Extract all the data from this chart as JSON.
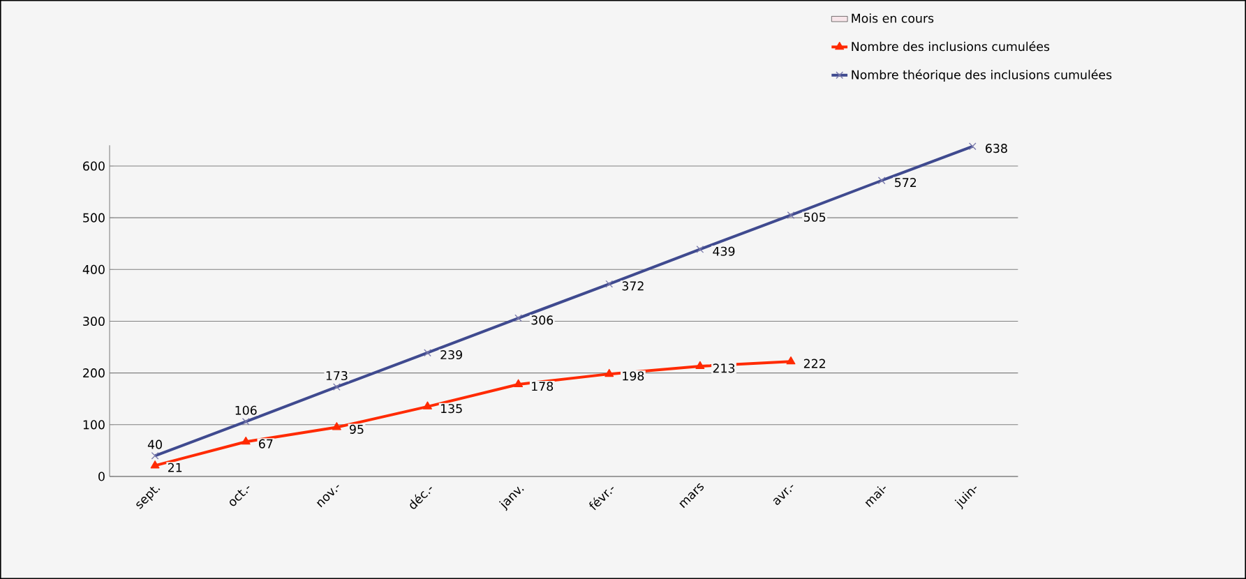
{
  "chart_data": {
    "type": "line",
    "categories": [
      "sept.",
      "oct.-",
      "nov.-",
      "déc.-",
      "janv.",
      "févr.-",
      "mars",
      "avr.-",
      "mai-",
      "juin-"
    ],
    "series": [
      {
        "name": "Mois en cours",
        "type": "bar",
        "color": "#f8e6ea",
        "values": [
          null,
          null,
          null,
          null,
          null,
          null,
          null,
          null,
          null,
          null
        ]
      },
      {
        "name": "Nombre des inclusions cumulées",
        "color": "#ff2a00",
        "marker": "triangle",
        "values": [
          21,
          67,
          95,
          135,
          178,
          198,
          213,
          222,
          null,
          null
        ]
      },
      {
        "name": "Nombre théorique des inclusions cumulées",
        "color": "#3f4a8f",
        "marker": "cross",
        "values": [
          40,
          106,
          173,
          239,
          306,
          372,
          439,
          505,
          572,
          638
        ]
      }
    ],
    "ylim": [
      0,
      640
    ],
    "yticks": [
      0,
      100,
      200,
      300,
      400,
      500,
      600
    ],
    "grid": "y",
    "legend": "top right",
    "data_labels": true
  }
}
